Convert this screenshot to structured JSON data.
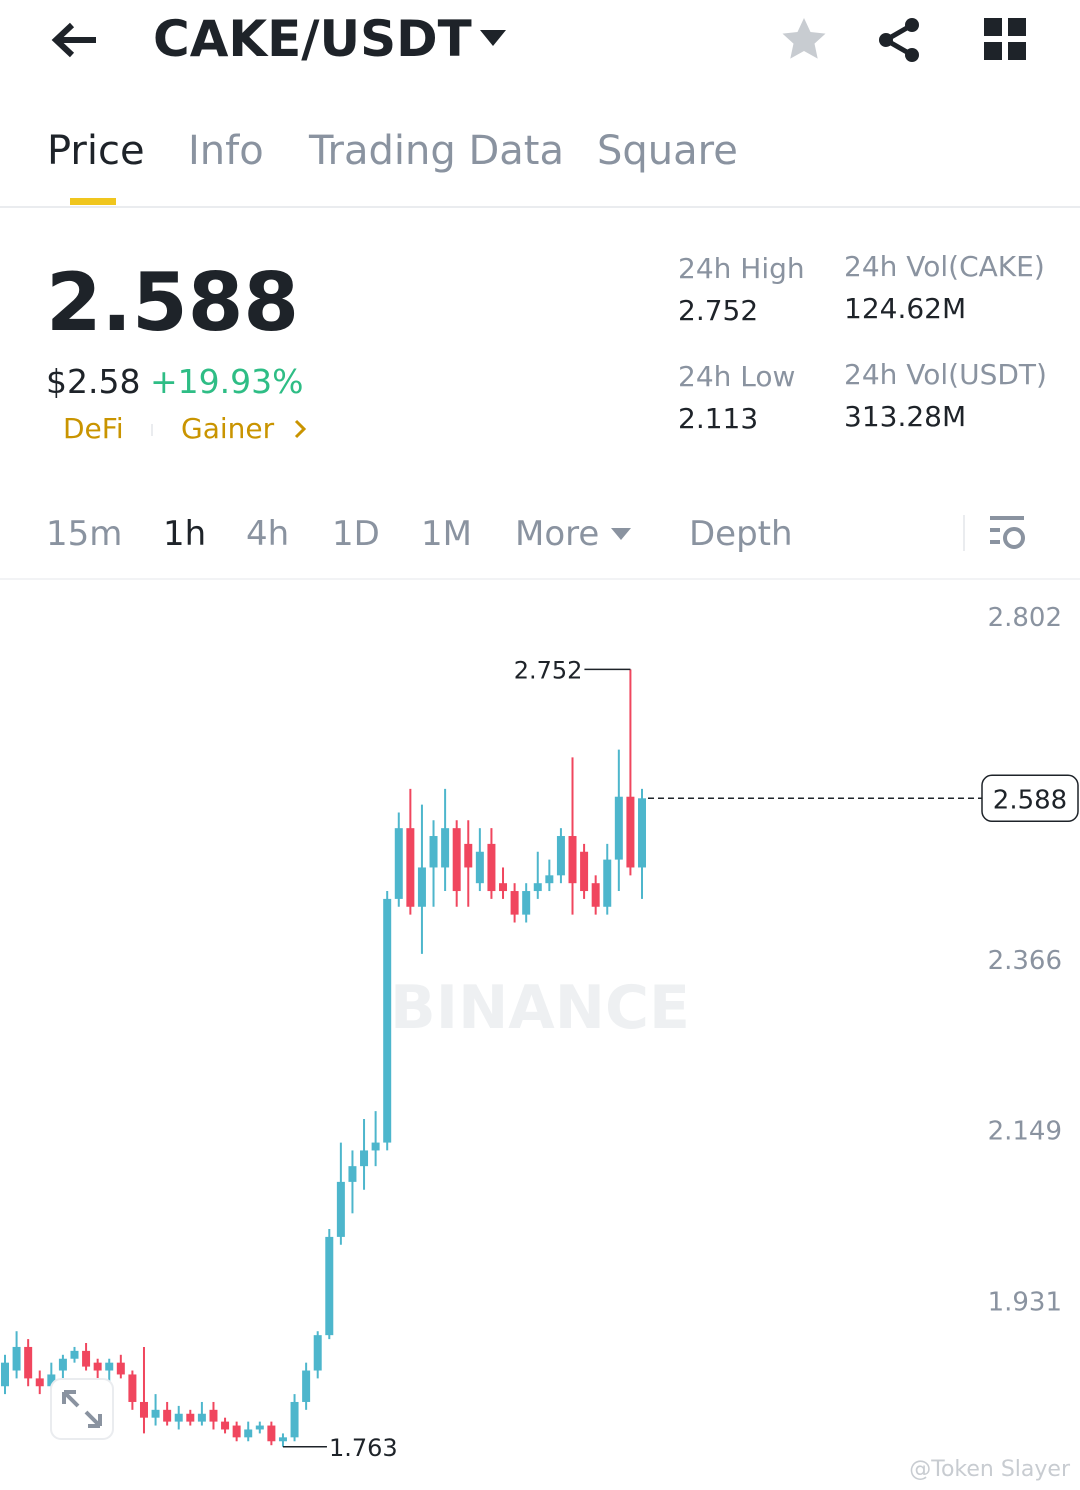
{
  "header": {
    "pair": "CAKE/USDT"
  },
  "tabs": [
    "Price",
    "Info",
    "Trading Data",
    "Square"
  ],
  "summary": {
    "price": "2.588",
    "fiat": "$2.58",
    "change": "+19.93%",
    "tags": [
      "DeFi",
      "Gainer"
    ],
    "stats": [
      {
        "label": "24h High",
        "value": "2.752"
      },
      {
        "label": "24h Vol(CAKE)",
        "value": "124.62M"
      },
      {
        "label": "24h Low",
        "value": "2.113"
      },
      {
        "label": "24h Vol(USDT)",
        "value": "313.28M"
      }
    ]
  },
  "intervals": [
    "15m",
    "1h",
    "4h",
    "1D",
    "1M",
    "More",
    "Depth"
  ],
  "watermark": "BINANCE",
  "credit": "@Token Slayer",
  "chart": {
    "type": "candlestick",
    "up_color": "#4db6cc",
    "down_color": "#f0465e",
    "ylim": [
      1.708,
      2.853
    ],
    "yticks": [
      2.802,
      2.366,
      2.149,
      1.931
    ],
    "open": [
      1.84,
      1.86,
      1.89,
      1.85,
      1.84,
      1.86,
      1.875,
      1.885,
      1.87,
      1.86,
      1.87,
      1.855,
      1.82,
      1.8,
      1.81,
      1.795,
      1.805,
      1.795,
      1.81,
      1.795,
      1.79,
      1.775,
      1.785,
      1.79,
      1.77,
      1.775,
      1.82,
      1.86,
      1.905,
      2.03,
      2.1,
      2.12,
      2.14,
      2.15,
      2.46,
      2.55,
      2.45,
      2.5,
      2.5,
      2.55,
      2.53,
      2.48,
      2.53,
      2.48,
      2.47,
      2.44,
      2.47,
      2.48,
      2.49,
      2.54,
      2.52,
      2.48,
      2.45,
      2.51,
      2.59,
      2.5
    ],
    "high": [
      1.88,
      1.91,
      1.9,
      1.86,
      1.87,
      1.88,
      1.89,
      1.895,
      1.875,
      1.875,
      1.88,
      1.86,
      1.89,
      1.83,
      1.82,
      1.815,
      1.81,
      1.82,
      1.82,
      1.8,
      1.795,
      1.795,
      1.795,
      1.795,
      1.78,
      1.83,
      1.87,
      1.91,
      2.04,
      2.15,
      2.14,
      2.18,
      2.19,
      2.47,
      2.57,
      2.6,
      2.58,
      2.56,
      2.6,
      2.56,
      2.56,
      2.55,
      2.55,
      2.5,
      2.48,
      2.48,
      2.52,
      2.51,
      2.55,
      2.64,
      2.53,
      2.49,
      2.53,
      2.65,
      2.752,
      2.6
    ],
    "low": [
      1.83,
      1.85,
      1.84,
      1.83,
      1.83,
      1.85,
      1.87,
      1.86,
      1.85,
      1.84,
      1.85,
      1.81,
      1.78,
      1.79,
      1.79,
      1.785,
      1.79,
      1.79,
      1.785,
      1.78,
      1.77,
      1.77,
      1.78,
      1.765,
      1.763,
      1.77,
      1.81,
      1.85,
      1.9,
      2.02,
      2.06,
      2.09,
      2.12,
      2.14,
      2.45,
      2.44,
      2.39,
      2.45,
      2.47,
      2.45,
      2.45,
      2.47,
      2.46,
      2.46,
      2.43,
      2.43,
      2.46,
      2.47,
      2.48,
      2.44,
      2.46,
      2.44,
      2.44,
      2.47,
      2.49,
      2.46
    ],
    "close": [
      1.87,
      1.89,
      1.85,
      1.84,
      1.855,
      1.875,
      1.885,
      1.865,
      1.86,
      1.87,
      1.855,
      1.82,
      1.8,
      1.81,
      1.795,
      1.805,
      1.795,
      1.805,
      1.795,
      1.785,
      1.775,
      1.785,
      1.79,
      1.77,
      1.775,
      1.82,
      1.86,
      1.905,
      2.03,
      2.1,
      2.12,
      2.14,
      2.15,
      2.46,
      2.55,
      2.45,
      2.5,
      2.54,
      2.55,
      2.47,
      2.5,
      2.52,
      2.47,
      2.47,
      2.44,
      2.47,
      2.48,
      2.49,
      2.54,
      2.48,
      2.47,
      2.45,
      2.51,
      2.59,
      2.5,
      2.588
    ]
  }
}
